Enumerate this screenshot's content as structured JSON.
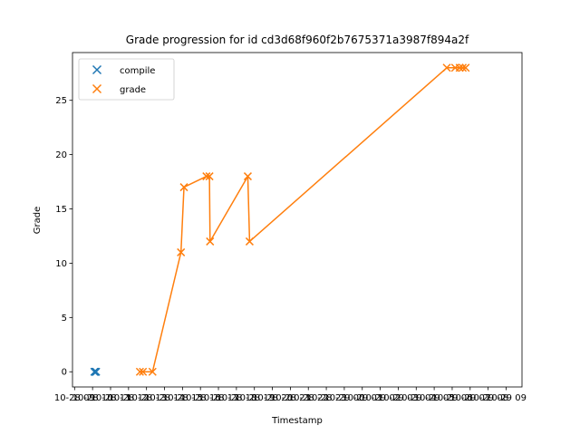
{
  "chart_data": {
    "type": "scatter",
    "title": "Grade progression for id cd3d68f960f2b7675371a3987f894a2f",
    "xlabel": "Timestamp",
    "ylabel": "Grade",
    "ylim": [
      -1.4,
      29.4
    ],
    "yticks": [
      0,
      5,
      10,
      15,
      20,
      25
    ],
    "xticks": [
      "10-28 09",
      "10-28 10",
      "10-28 11",
      "10-28 12",
      "10-28 13",
      "10-28 14",
      "10-28 15",
      "10-28 16",
      "10-28 17",
      "10-28 18",
      "10-28 19",
      "10-28 20",
      "10-28 21",
      "10-28 22",
      "10-28 23",
      "10-29 00",
      "10-29 01",
      "10-29 02",
      "10-29 03",
      "10-29 04",
      "10-29 05",
      "10-29 06",
      "10-29 07",
      "10-29 08",
      "10-29 09"
    ],
    "legend_position": "top-left",
    "series": [
      {
        "name": "compile",
        "color": "#1f77b4",
        "marker": "x",
        "line": false,
        "points": [
          {
            "x": "10-28 10:06",
            "y": 0
          },
          {
            "x": "10-28 10:08",
            "y": 0
          },
          {
            "x": "10-28 10:10",
            "y": 0
          },
          {
            "x": "10-28 10:12",
            "y": 0
          }
        ]
      },
      {
        "name": "grade",
        "color": "#ff7f0e",
        "marker": "x",
        "line": true,
        "points": [
          {
            "x": "10-28 12:38",
            "y": 0
          },
          {
            "x": "10-28 12:48",
            "y": 0
          },
          {
            "x": "10-28 13:20",
            "y": 0
          },
          {
            "x": "10-28 14:55",
            "y": 11
          },
          {
            "x": "10-28 15:05",
            "y": 17
          },
          {
            "x": "10-28 16:20",
            "y": 18
          },
          {
            "x": "10-28 16:30",
            "y": 18
          },
          {
            "x": "10-28 16:32",
            "y": 12
          },
          {
            "x": "10-28 18:38",
            "y": 18
          },
          {
            "x": "10-28 18:44",
            "y": 12
          },
          {
            "x": "10-29 05:42",
            "y": 28
          },
          {
            "x": "10-29 06:10",
            "y": 28
          },
          {
            "x": "10-29 06:25",
            "y": 28
          },
          {
            "x": "10-29 06:35",
            "y": 28
          },
          {
            "x": "10-29 06:45",
            "y": 28
          }
        ]
      }
    ]
  }
}
